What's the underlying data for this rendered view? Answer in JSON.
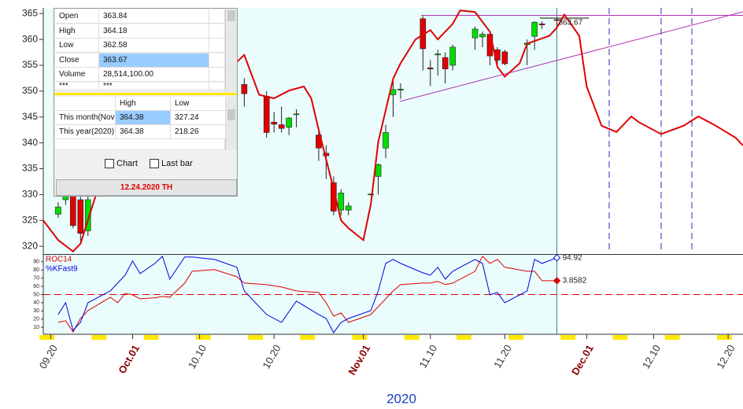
{
  "chart_data": [
    {
      "type": "candlestick",
      "x": [
        "09.21",
        "09.22",
        "09.23",
        "09.24",
        "09.25",
        "10.16",
        "10.19",
        "10.20",
        "10.21",
        "10.22",
        "10.23",
        "10.26",
        "10.27",
        "10.28",
        "10.29",
        "10.30",
        "11.02",
        "11.03",
        "11.04",
        "11.05",
        "11.06",
        "11.09",
        "11.10",
        "11.11",
        "11.12",
        "11.13",
        "11.16",
        "11.17",
        "11.18",
        "11.19",
        "11.20",
        "11.23",
        "11.24",
        "11.25",
        "11.27"
      ],
      "open": [
        326.2,
        329.0,
        331.0,
        329.0,
        323.0,
        351.3,
        349.0,
        344.0,
        343.5,
        343.0,
        345.5,
        341.5,
        338.0,
        332.3,
        327.0,
        327.0,
        330.0,
        333.5,
        339.0,
        349.3,
        350.2,
        364.0,
        354.5,
        357.0,
        356.5,
        355.0,
        360.3,
        360.5,
        361.0,
        358.0,
        357.6,
        359.0,
        360.6,
        363.0,
        363.84
      ],
      "high": [
        328.5,
        331.5,
        332.0,
        330.0,
        330.5,
        352.5,
        350.0,
        346.0,
        347.0,
        345.0,
        346.5,
        343.0,
        339.5,
        333.5,
        331.0,
        328.5,
        330.2,
        336.0,
        343.5,
        352.0,
        351.5,
        364.5,
        356.0,
        358.0,
        357.5,
        359.0,
        362.5,
        361.5,
        361.5,
        358.5,
        358.0,
        360.0,
        363.5,
        363.5,
        364.18
      ],
      "low": [
        325.5,
        328.0,
        323.5,
        321.0,
        322.0,
        347.0,
        341.0,
        342.0,
        342.0,
        341.5,
        343.0,
        336.5,
        333.0,
        326.0,
        326.0,
        326.0,
        329.8,
        330.0,
        337.0,
        345.0,
        348.5,
        354.0,
        351.0,
        353.0,
        351.5,
        354.0,
        358.0,
        358.5,
        355.0,
        354.5,
        355.0,
        355.0,
        358.0,
        362.0,
        362.58
      ],
      "close": [
        327.6,
        330.0,
        324.0,
        322.5,
        329.0,
        349.5,
        342.0,
        343.6,
        342.8,
        344.8,
        345.6,
        339.0,
        337.5,
        326.8,
        330.3,
        327.8,
        330.1,
        335.8,
        342.0,
        350.3,
        350.4,
        358.2,
        354.3,
        357.2,
        354.3,
        358.5,
        362.0,
        361.0,
        356.8,
        356.0,
        355.3,
        359.3,
        363.3,
        362.8,
        363.67
      ],
      "up_color": "#00dd00",
      "down_color": "#e00000",
      "overlay": {
        "color": "#e00000",
        "x": [
          "09.19",
          "09.21",
          "09.23",
          "09.24",
          "09.26",
          "10.16",
          "10.18",
          "10.20",
          "10.22",
          "10.24",
          "10.25",
          "10.26",
          "10.28",
          "10.29",
          "10.30",
          "11.01",
          "11.02",
          "11.03",
          "11.05",
          "11.06",
          "11.08",
          "11.10",
          "11.11",
          "11.13",
          "11.14",
          "11.16",
          "11.18",
          "11.19",
          "11.20",
          "11.22",
          "11.23",
          "11.26",
          "11.27",
          "11.28",
          "11.30",
          "12.01",
          "12.03",
          "12.05",
          "12.07",
          "12.08",
          "12.11",
          "12.14",
          "12.16",
          "12.18",
          "12.21",
          "12.22"
        ],
        "values": [
          325.0,
          321.2,
          319.0,
          320.5,
          329.6,
          357.0,
          349.3,
          348.6,
          350.1,
          350.9,
          348.6,
          342.5,
          331.1,
          325.0,
          323.5,
          321.2,
          328.1,
          340.2,
          352.4,
          355.4,
          360.0,
          361.8,
          360.0,
          363.0,
          365.6,
          365.3,
          361.5,
          354.7,
          352.8,
          355.4,
          359.2,
          360.7,
          362.3,
          364.8,
          360.7,
          350.9,
          343.3,
          342.1,
          345.1,
          344.0,
          341.7,
          343.3,
          345.1,
          343.6,
          341.0,
          339.5
        ]
      },
      "xlim": [
        "09.19",
        "12.22"
      ],
      "ylim": [
        318.5,
        366.1
      ],
      "yticks": [
        320,
        325,
        330,
        335,
        340,
        345,
        350,
        355,
        360,
        365
      ],
      "xticks": [
        "09.20",
        {
          "value": "10.01",
          "label": "Oct.01"
        },
        "10.10",
        "10.20",
        {
          "value": "11.01",
          "label": "Nov.01"
        },
        "11.10",
        "11.20",
        {
          "value": "12.01",
          "label": "Dec.01"
        },
        "12.10",
        "12.20"
      ],
      "x_label": "2020"
    },
    {
      "type": "line",
      "x": [
        "09.21",
        "09.22",
        "09.23",
        "09.24",
        "09.25",
        "09.28",
        "09.29",
        "09.30",
        "10.01",
        "10.02",
        "10.04",
        "10.05",
        "10.06",
        "10.08",
        "10.09",
        "10.12",
        "10.15",
        "10.16",
        "10.19",
        "10.21",
        "10.23",
        "10.26",
        "10.27",
        "10.28",
        "10.29",
        "10.30",
        "11.02",
        "11.03",
        "11.04",
        "11.05",
        "11.06",
        "11.09",
        "11.10",
        "11.11",
        "11.12",
        "11.13",
        "11.16",
        "11.17",
        "11.18",
        "11.19",
        "11.20",
        "11.23",
        "11.24",
        "11.25",
        "11.27"
      ],
      "series": [
        {
          "name": "ROC14",
          "color": "#e00000",
          "values": [
            16,
            18,
            4.4,
            20.8,
            30.4,
            46.7,
            40,
            51.5,
            49.6,
            44.8,
            46,
            47.7,
            46.7,
            64,
            78.4,
            80.4,
            71.7,
            64,
            62.1,
            59.2,
            54.4,
            52.5,
            40,
            23.7,
            27.5,
            16,
            25.6,
            35.2,
            44.8,
            54.4,
            62.1,
            64,
            64,
            66,
            62.1,
            64,
            78.4,
            96.7,
            88,
            92.9,
            83.3,
            78.4,
            78.4,
            66.9,
            66.9
          ]
        },
        {
          "name": "%KFast9",
          "color": "#0000e0",
          "values": [
            25.6,
            40,
            6.3,
            16,
            40,
            54.4,
            64,
            73.7,
            91,
            75.6,
            88,
            96.7,
            68.8,
            95.8,
            95.8,
            92.9,
            83.3,
            54.4,
            25.6,
            16,
            42,
            25.6,
            20.8,
            3.5,
            16,
            20.8,
            30.4,
            54.4,
            88,
            92.9,
            88,
            76.5,
            73.7,
            83.3,
            68.8,
            78.4,
            92.9,
            88,
            49.6,
            52.5,
            40,
            54.4,
            92.9,
            88,
            94.92
          ]
        }
      ],
      "xlim": [
        "09.19",
        "12.22"
      ],
      "ylim": [
        1.5,
        97.5
      ],
      "yticks": [
        10,
        20,
        30,
        40,
        50,
        60,
        70,
        80,
        90
      ],
      "hline": 50,
      "annotation": "3.8582"
    }
  ],
  "popup": {
    "rows": [
      [
        "Open",
        363.84
      ],
      [
        "High",
        364.18
      ],
      [
        "Low",
        362.58
      ],
      [
        "Close",
        363.67
      ],
      [
        "Volume",
        "28,514,100.00"
      ],
      [
        "***",
        "***"
      ]
    ],
    "range_header": [
      "High",
      "Low"
    ],
    "range_rows": [
      [
        "This month(Nov)",
        364.38,
        327.24
      ],
      [
        "This year(2020)",
        364.38,
        218.26
      ]
    ],
    "checkboxes": [
      "Chart",
      "Last bar"
    ],
    "footer": "12.24.2020 TH"
  }
}
